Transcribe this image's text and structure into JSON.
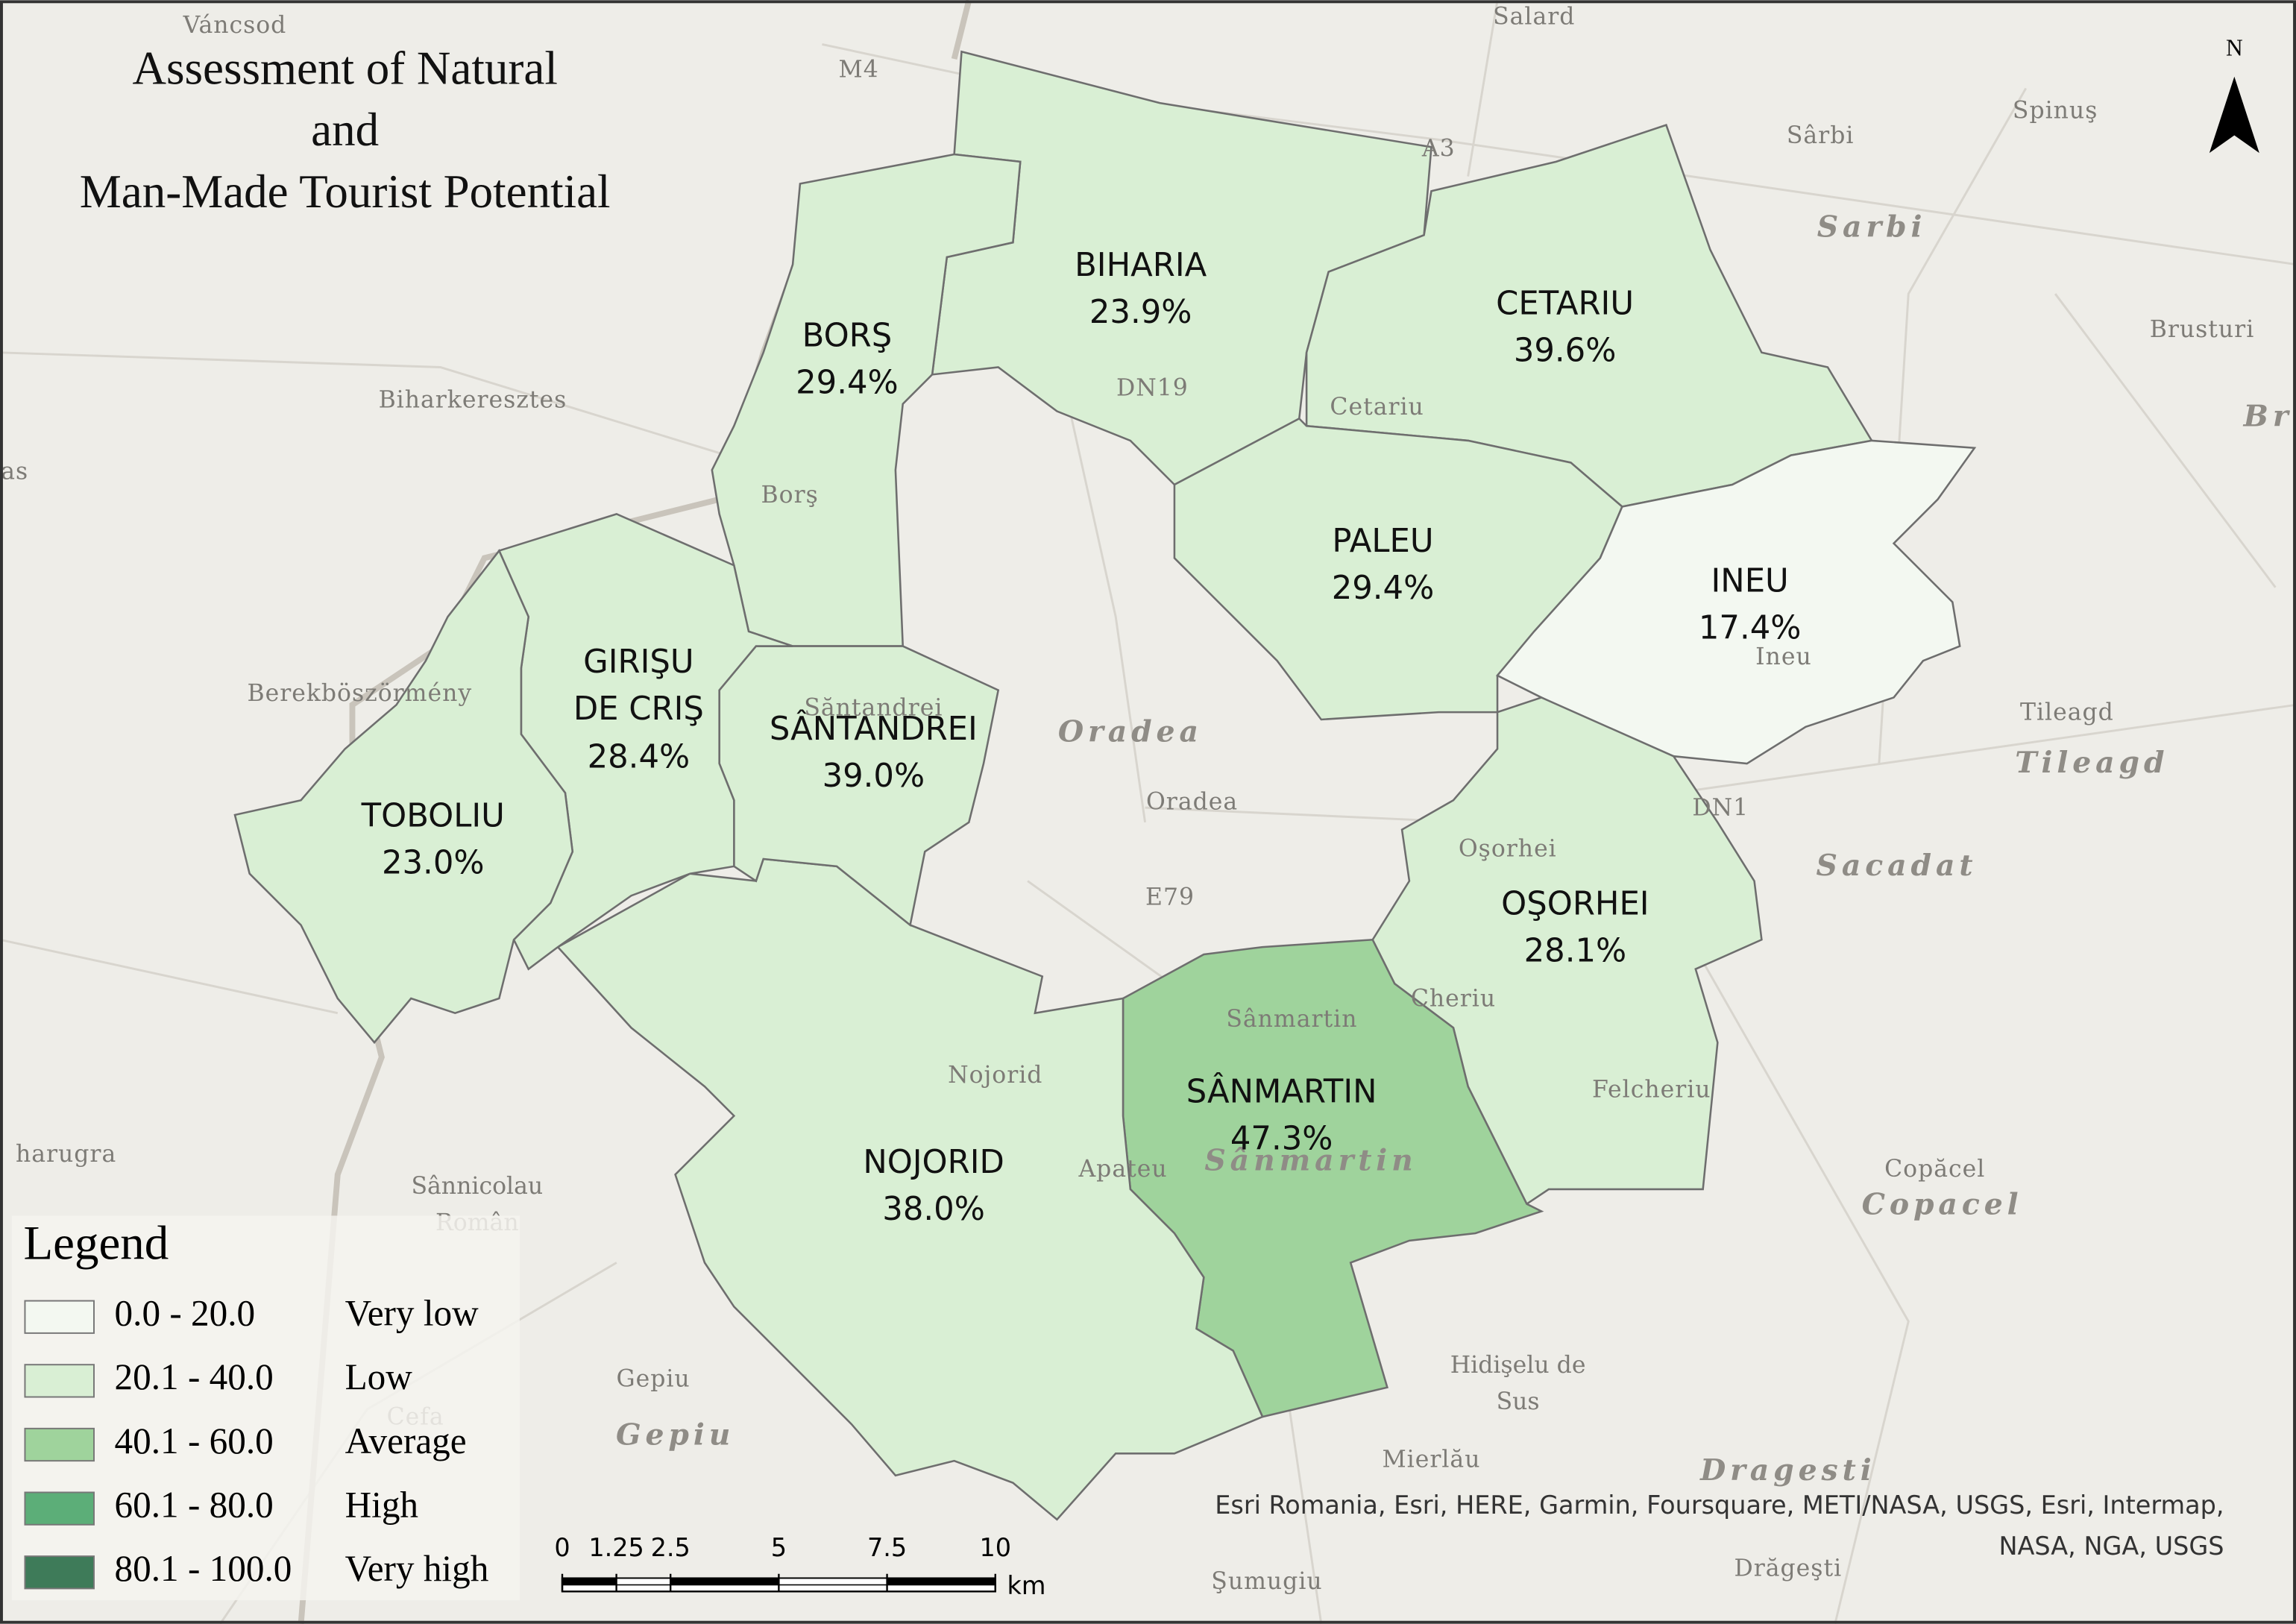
{
  "title": "Assessment of Natural\nand\nMan-Made Tourist Potential",
  "north": "N",
  "regions": [
    {
      "name": "BIHARIA",
      "value": 23.9,
      "value_label": "23.9%"
    },
    {
      "name": "BORŞ",
      "value": 29.4,
      "value_label": "29.4%"
    },
    {
      "name": "CETARIU",
      "value": 39.6,
      "value_label": "39.6%"
    },
    {
      "name": "PALEU",
      "value": 29.4,
      "value_label": "29.4%"
    },
    {
      "name": "INEU",
      "value": 17.4,
      "value_label": "17.4%"
    },
    {
      "name": "OŞORHEI",
      "value": 28.1,
      "value_label": "28.1%"
    },
    {
      "name": "SÂNMARTIN",
      "value": 47.3,
      "value_label": "47.3%"
    },
    {
      "name": "NOJORID",
      "value": 38.0,
      "value_label": "38.0%"
    },
    {
      "name": "SÂNTANDREI",
      "value": 39.0,
      "value_label": "39.0%"
    },
    {
      "name": "GIRIŞU\nDE CRIŞ",
      "value": 28.4,
      "value_label": "28.4%"
    },
    {
      "name": "TOBOLIU",
      "value": 23.0,
      "value_label": "23.0%"
    }
  ],
  "legend": {
    "title": "Legend",
    "classes": [
      {
        "range": "0.0 - 20.0",
        "label": "Very low",
        "color": "#f3f8f1"
      },
      {
        "range": "20.1 - 40.0",
        "label": "Low",
        "color": "#d9efd4"
      },
      {
        "range": "40.1 - 60.0",
        "label": "Average",
        "color": "#9fd39c"
      },
      {
        "range": "60.1 - 80.0",
        "label": "High",
        "color": "#5cae78"
      },
      {
        "range": "80.1 - 100.0",
        "label": "Very high",
        "color": "#3e7b59"
      }
    ]
  },
  "scale_bar": {
    "ticks": [
      0,
      1.25,
      2.5,
      5,
      7.5,
      10
    ],
    "unit": "km"
  },
  "places": [
    "Váncsod",
    "Salard",
    "M4",
    "A3",
    "Spinuş",
    "Sârbi",
    "Sarbi",
    "Brusturi",
    "Br",
    "Biharkeresztes",
    "as",
    "Borş",
    "Cetariu",
    "DN19",
    "Berekböszörmény",
    "Săntandrei",
    "Oradea",
    "Oradea",
    "Ineu",
    "Tileagd",
    "Tileagd",
    "DN1",
    "Sacadat",
    "E79",
    "Oşorhei",
    "Sânmartin",
    "Cheriu",
    "Felcheriu",
    "Nojorid",
    "Apateu",
    "Sânmartin",
    "Copăcel",
    "Copacel",
    "Hidişelu de\nSus",
    "Mierlău",
    "Dragesti",
    "Drăgeşti",
    "Gepiu",
    "Gepiu",
    "Cefa",
    "Sânnicolau\nRomân",
    "harugra",
    "Şumugiu"
  ],
  "attribution": "Esri Romania, Esri, HERE, Garmin, Foursquare, METI/NASA, USGS, Esri, Intermap,\nNASA, NGA, USGS"
}
